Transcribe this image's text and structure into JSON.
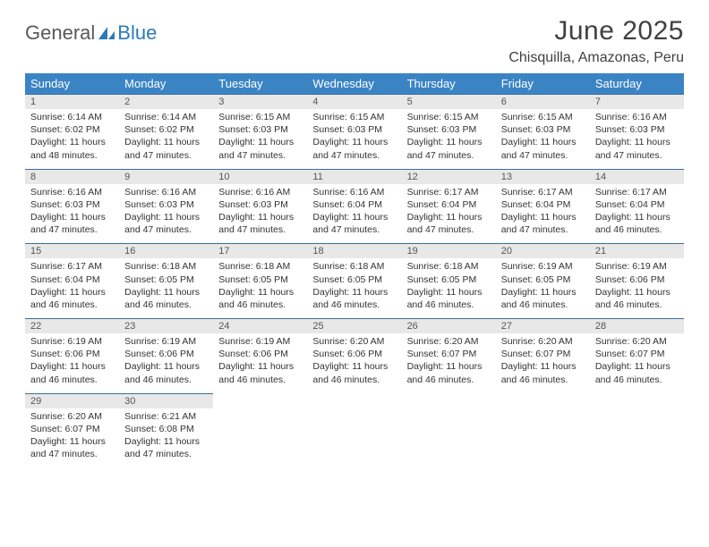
{
  "logo": {
    "general": "General",
    "blue": "Blue"
  },
  "title": "June 2025",
  "location": "Chisquilla, Amazonas, Peru",
  "colors": {
    "header_bg": "#3b84c4",
    "header_text": "#ffffff",
    "daynum_bg": "#e8e8e8",
    "week_border": "#3b6f9e",
    "logo_gray": "#58595b",
    "logo_blue": "#2a7ab8",
    "body_text": "#333333"
  },
  "typography": {
    "title_fontsize": 30,
    "location_fontsize": 16,
    "header_fontsize": 13,
    "daynum_fontsize": 11,
    "cell_fontsize": 10.5
  },
  "day_headers": [
    "Sunday",
    "Monday",
    "Tuesday",
    "Wednesday",
    "Thursday",
    "Friday",
    "Saturday"
  ],
  "weeks": [
    [
      {
        "num": "1",
        "sunrise": "Sunrise: 6:14 AM",
        "sunset": "Sunset: 6:02 PM",
        "day1": "Daylight: 11 hours",
        "day2": "and 48 minutes."
      },
      {
        "num": "2",
        "sunrise": "Sunrise: 6:14 AM",
        "sunset": "Sunset: 6:02 PM",
        "day1": "Daylight: 11 hours",
        "day2": "and 47 minutes."
      },
      {
        "num": "3",
        "sunrise": "Sunrise: 6:15 AM",
        "sunset": "Sunset: 6:03 PM",
        "day1": "Daylight: 11 hours",
        "day2": "and 47 minutes."
      },
      {
        "num": "4",
        "sunrise": "Sunrise: 6:15 AM",
        "sunset": "Sunset: 6:03 PM",
        "day1": "Daylight: 11 hours",
        "day2": "and 47 minutes."
      },
      {
        "num": "5",
        "sunrise": "Sunrise: 6:15 AM",
        "sunset": "Sunset: 6:03 PM",
        "day1": "Daylight: 11 hours",
        "day2": "and 47 minutes."
      },
      {
        "num": "6",
        "sunrise": "Sunrise: 6:15 AM",
        "sunset": "Sunset: 6:03 PM",
        "day1": "Daylight: 11 hours",
        "day2": "and 47 minutes."
      },
      {
        "num": "7",
        "sunrise": "Sunrise: 6:16 AM",
        "sunset": "Sunset: 6:03 PM",
        "day1": "Daylight: 11 hours",
        "day2": "and 47 minutes."
      }
    ],
    [
      {
        "num": "8",
        "sunrise": "Sunrise: 6:16 AM",
        "sunset": "Sunset: 6:03 PM",
        "day1": "Daylight: 11 hours",
        "day2": "and 47 minutes."
      },
      {
        "num": "9",
        "sunrise": "Sunrise: 6:16 AM",
        "sunset": "Sunset: 6:03 PM",
        "day1": "Daylight: 11 hours",
        "day2": "and 47 minutes."
      },
      {
        "num": "10",
        "sunrise": "Sunrise: 6:16 AM",
        "sunset": "Sunset: 6:03 PM",
        "day1": "Daylight: 11 hours",
        "day2": "and 47 minutes."
      },
      {
        "num": "11",
        "sunrise": "Sunrise: 6:16 AM",
        "sunset": "Sunset: 6:04 PM",
        "day1": "Daylight: 11 hours",
        "day2": "and 47 minutes."
      },
      {
        "num": "12",
        "sunrise": "Sunrise: 6:17 AM",
        "sunset": "Sunset: 6:04 PM",
        "day1": "Daylight: 11 hours",
        "day2": "and 47 minutes."
      },
      {
        "num": "13",
        "sunrise": "Sunrise: 6:17 AM",
        "sunset": "Sunset: 6:04 PM",
        "day1": "Daylight: 11 hours",
        "day2": "and 47 minutes."
      },
      {
        "num": "14",
        "sunrise": "Sunrise: 6:17 AM",
        "sunset": "Sunset: 6:04 PM",
        "day1": "Daylight: 11 hours",
        "day2": "and 46 minutes."
      }
    ],
    [
      {
        "num": "15",
        "sunrise": "Sunrise: 6:17 AM",
        "sunset": "Sunset: 6:04 PM",
        "day1": "Daylight: 11 hours",
        "day2": "and 46 minutes."
      },
      {
        "num": "16",
        "sunrise": "Sunrise: 6:18 AM",
        "sunset": "Sunset: 6:05 PM",
        "day1": "Daylight: 11 hours",
        "day2": "and 46 minutes."
      },
      {
        "num": "17",
        "sunrise": "Sunrise: 6:18 AM",
        "sunset": "Sunset: 6:05 PM",
        "day1": "Daylight: 11 hours",
        "day2": "and 46 minutes."
      },
      {
        "num": "18",
        "sunrise": "Sunrise: 6:18 AM",
        "sunset": "Sunset: 6:05 PM",
        "day1": "Daylight: 11 hours",
        "day2": "and 46 minutes."
      },
      {
        "num": "19",
        "sunrise": "Sunrise: 6:18 AM",
        "sunset": "Sunset: 6:05 PM",
        "day1": "Daylight: 11 hours",
        "day2": "and 46 minutes."
      },
      {
        "num": "20",
        "sunrise": "Sunrise: 6:19 AM",
        "sunset": "Sunset: 6:05 PM",
        "day1": "Daylight: 11 hours",
        "day2": "and 46 minutes."
      },
      {
        "num": "21",
        "sunrise": "Sunrise: 6:19 AM",
        "sunset": "Sunset: 6:06 PM",
        "day1": "Daylight: 11 hours",
        "day2": "and 46 minutes."
      }
    ],
    [
      {
        "num": "22",
        "sunrise": "Sunrise: 6:19 AM",
        "sunset": "Sunset: 6:06 PM",
        "day1": "Daylight: 11 hours",
        "day2": "and 46 minutes."
      },
      {
        "num": "23",
        "sunrise": "Sunrise: 6:19 AM",
        "sunset": "Sunset: 6:06 PM",
        "day1": "Daylight: 11 hours",
        "day2": "and 46 minutes."
      },
      {
        "num": "24",
        "sunrise": "Sunrise: 6:19 AM",
        "sunset": "Sunset: 6:06 PM",
        "day1": "Daylight: 11 hours",
        "day2": "and 46 minutes."
      },
      {
        "num": "25",
        "sunrise": "Sunrise: 6:20 AM",
        "sunset": "Sunset: 6:06 PM",
        "day1": "Daylight: 11 hours",
        "day2": "and 46 minutes."
      },
      {
        "num": "26",
        "sunrise": "Sunrise: 6:20 AM",
        "sunset": "Sunset: 6:07 PM",
        "day1": "Daylight: 11 hours",
        "day2": "and 46 minutes."
      },
      {
        "num": "27",
        "sunrise": "Sunrise: 6:20 AM",
        "sunset": "Sunset: 6:07 PM",
        "day1": "Daylight: 11 hours",
        "day2": "and 46 minutes."
      },
      {
        "num": "28",
        "sunrise": "Sunrise: 6:20 AM",
        "sunset": "Sunset: 6:07 PM",
        "day1": "Daylight: 11 hours",
        "day2": "and 46 minutes."
      }
    ],
    [
      {
        "num": "29",
        "sunrise": "Sunrise: 6:20 AM",
        "sunset": "Sunset: 6:07 PM",
        "day1": "Daylight: 11 hours",
        "day2": "and 47 minutes."
      },
      {
        "num": "30",
        "sunrise": "Sunrise: 6:21 AM",
        "sunset": "Sunset: 6:08 PM",
        "day1": "Daylight: 11 hours",
        "day2": "and 47 minutes."
      },
      null,
      null,
      null,
      null,
      null
    ]
  ]
}
